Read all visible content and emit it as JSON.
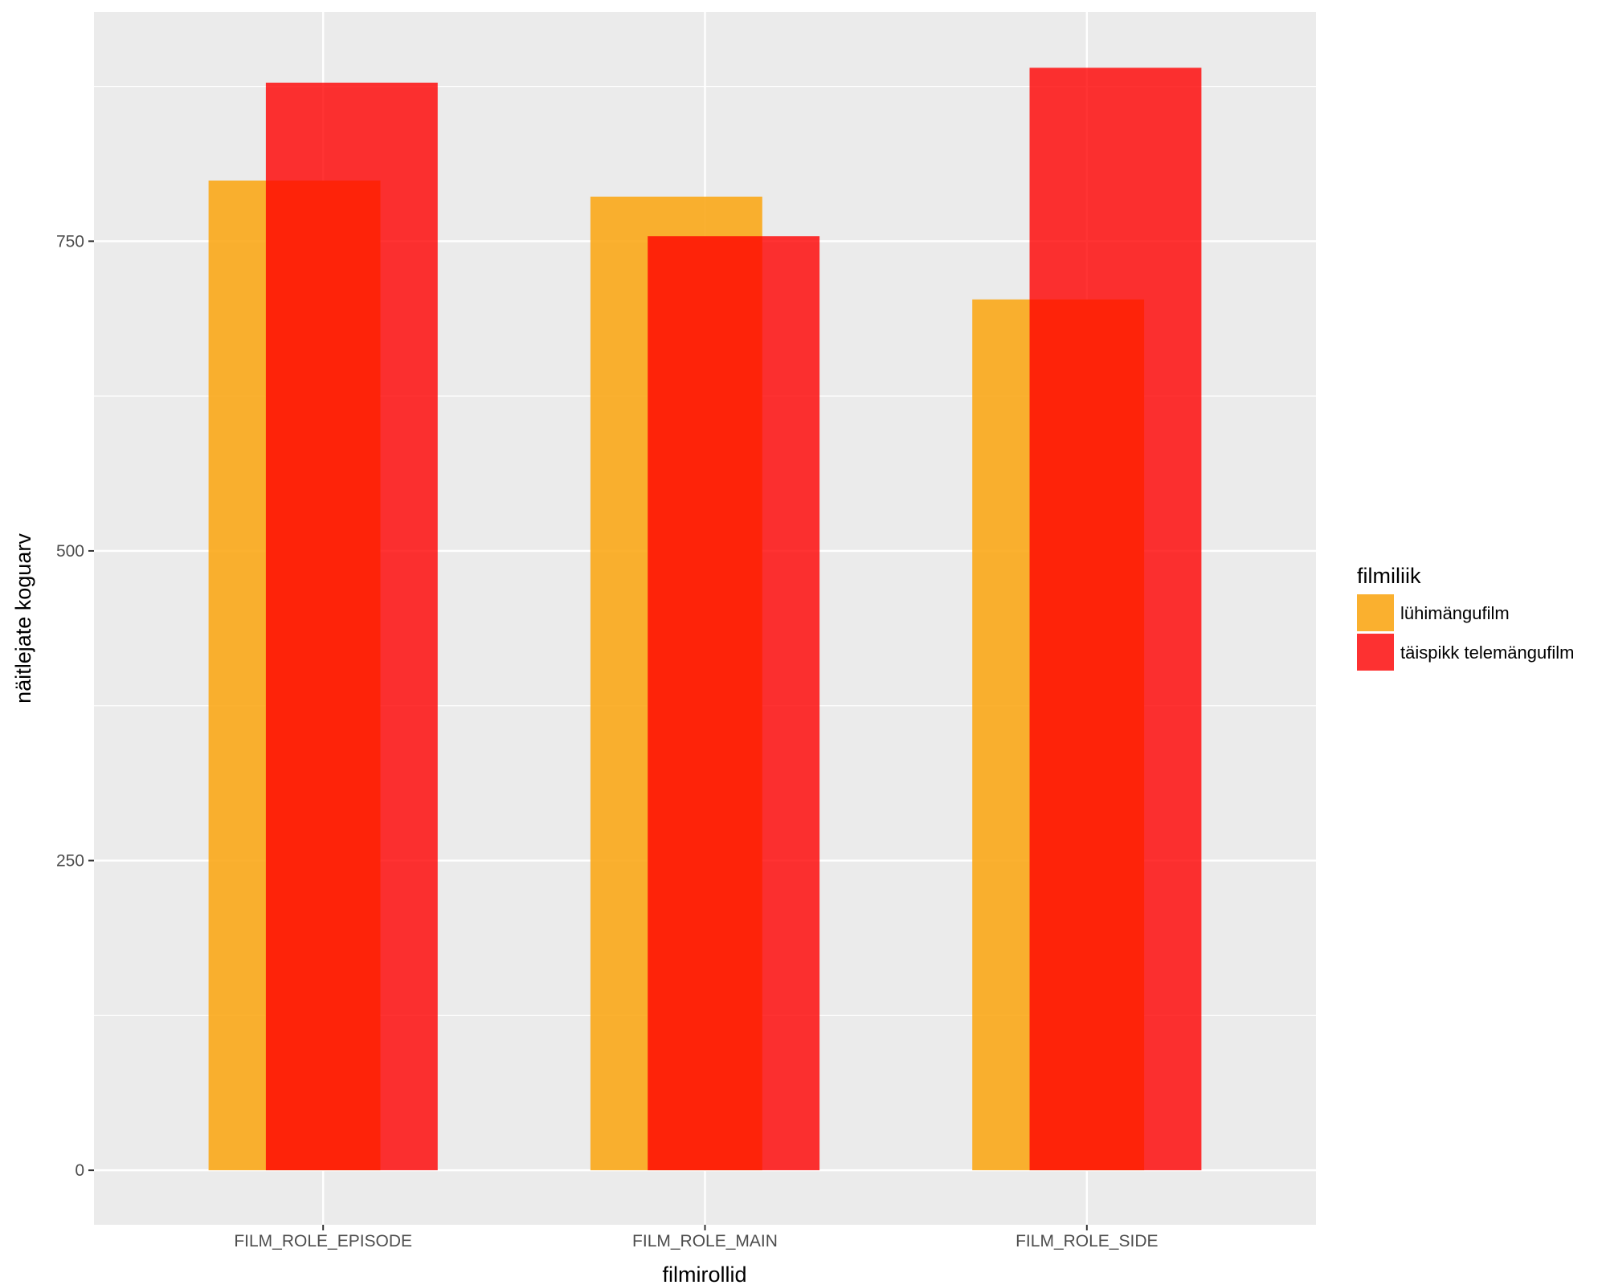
{
  "chart_data": {
    "type": "bar",
    "categories": [
      "FILM_ROLE_EPISODE",
      "FILM_ROLE_MAIN",
      "FILM_ROLE_SIDE"
    ],
    "series": [
      {
        "name": "lühimängufilm",
        "values": [
          799,
          786,
          703
        ],
        "color": "#FBA81A",
        "opacity": 0.9
      },
      {
        "name": "täispikk telemängufilm",
        "values": [
          878,
          754,
          890
        ],
        "color": "#FF0000",
        "opacity": 0.8
      }
    ],
    "bar_layout": "overlapping",
    "xlabel": "filmirollid",
    "ylabel": "näitlejate koguarv",
    "ylim": [
      -44,
      935
    ],
    "yticks": [
      0,
      250,
      500,
      750
    ],
    "grid": true,
    "legend": {
      "title": "filmiliik",
      "position": "right"
    }
  }
}
